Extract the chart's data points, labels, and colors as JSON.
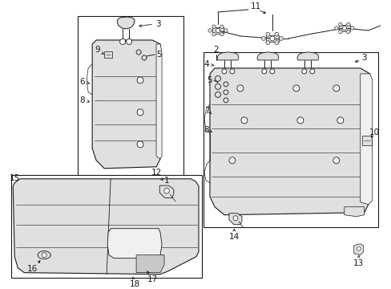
{
  "bg_color": "#ffffff",
  "line_color": "#1a1a1a",
  "fill_light": "#f0f0f0",
  "fill_mid": "#e0e0e0",
  "fill_dark": "#c8c8c8",
  "font_size": 7.5
}
